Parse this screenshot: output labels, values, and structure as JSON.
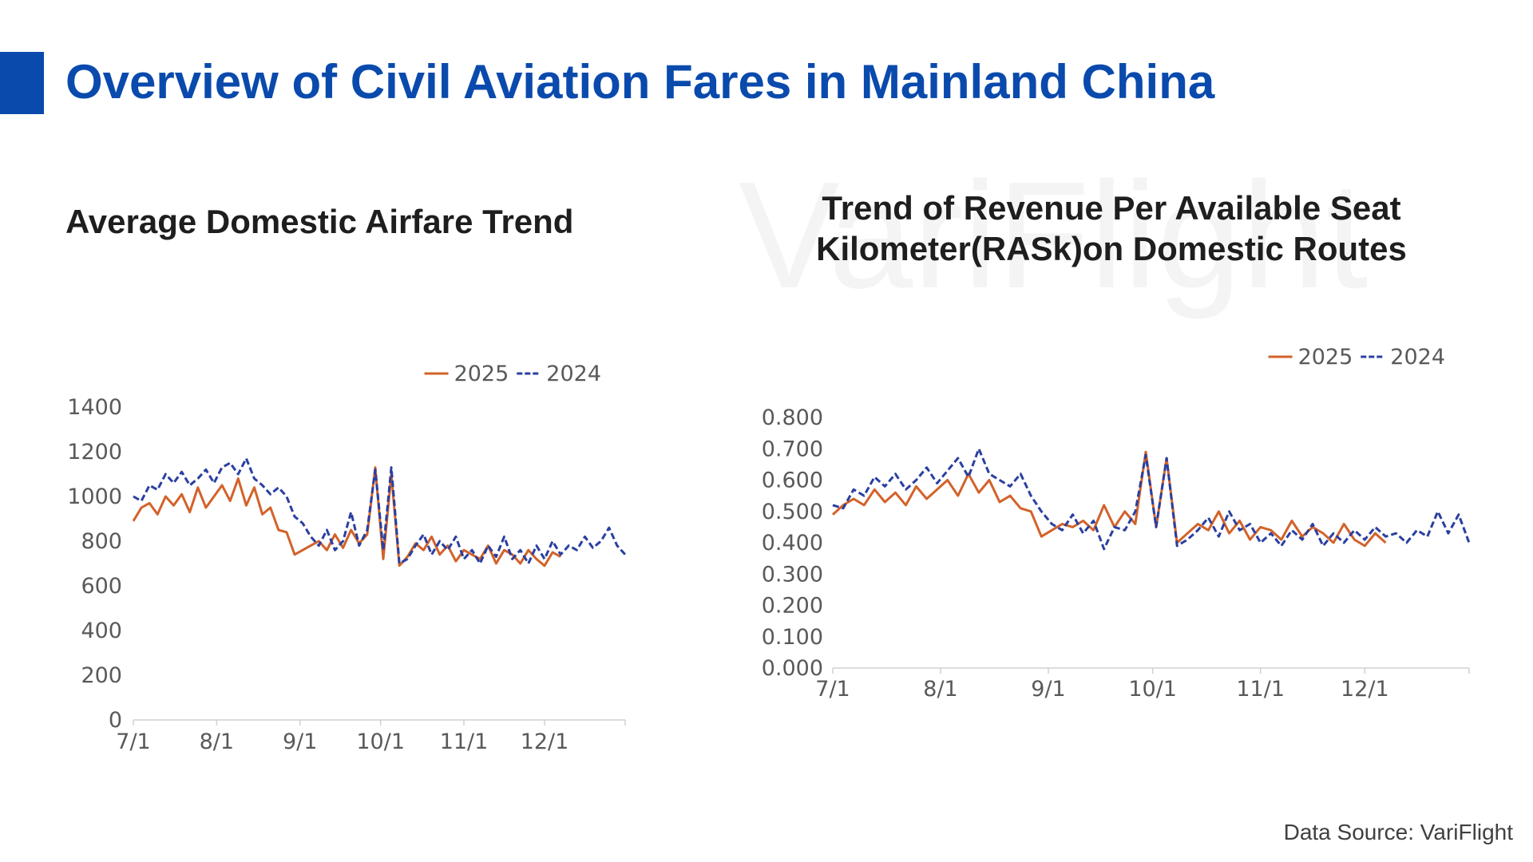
{
  "title": "Overview of Civil Aviation Fares in Mainland China",
  "watermark": "VariFlight",
  "source": "Data Source: VariFlight",
  "chart_data": [
    {
      "type": "line",
      "title": "Average Domestic Airfare Trend",
      "legend": "top-right",
      "x": [
        0,
        3,
        6,
        9,
        12,
        15,
        18,
        21,
        24,
        27,
        30,
        33,
        36,
        39,
        42,
        45,
        48,
        51,
        54,
        57,
        60,
        63,
        66,
        69,
        72,
        75,
        78,
        81,
        84,
        87,
        90,
        93,
        96,
        99,
        102,
        105,
        108,
        111,
        114,
        117,
        120,
        123,
        126,
        129,
        132,
        135,
        138,
        141,
        144,
        147,
        150,
        153,
        156,
        159,
        162,
        165,
        168,
        171,
        174,
        177,
        180,
        183
      ],
      "xlim": [
        0,
        183
      ],
      "xticks": [
        {
          "value": 0,
          "label": "7/1"
        },
        {
          "value": 31,
          "label": "8/1"
        },
        {
          "value": 62,
          "label": "9/1"
        },
        {
          "value": 92,
          "label": "10/1"
        },
        {
          "value": 123,
          "label": "11/1"
        },
        {
          "value": 153,
          "label": "12/1"
        },
        {
          "value": 183,
          "label": ""
        }
      ],
      "ylim": [
        0,
        1400
      ],
      "yticks": [
        0,
        200,
        400,
        600,
        800,
        1000,
        1200,
        1400
      ],
      "series": [
        {
          "name": "2025",
          "color": "#d2622a",
          "line_style": "solid",
          "values": [
            890,
            950,
            970,
            920,
            1000,
            960,
            1010,
            930,
            1040,
            950,
            1000,
            1050,
            980,
            1080,
            960,
            1040,
            920,
            950,
            850,
            840,
            740,
            760,
            780,
            800,
            760,
            830,
            770,
            850,
            790,
            830,
            1130,
            720,
            1100,
            690,
            730,
            790,
            760,
            820,
            740,
            780,
            710,
            760,
            740,
            720,
            780,
            700,
            760,
            740,
            700,
            760,
            720,
            690,
            750,
            730,
            null,
            null,
            null,
            null,
            null,
            null,
            null,
            null
          ]
        },
        {
          "name": "2024",
          "color": "#2a3fa0",
          "line_style": "dashed",
          "values": [
            1000,
            980,
            1050,
            1030,
            1100,
            1060,
            1110,
            1050,
            1080,
            1120,
            1060,
            1130,
            1150,
            1100,
            1170,
            1080,
            1050,
            1010,
            1040,
            1000,
            910,
            880,
            820,
            780,
            850,
            760,
            800,
            930,
            780,
            850,
            1120,
            760,
            1130,
            700,
            720,
            780,
            830,
            740,
            800,
            760,
            820,
            720,
            760,
            700,
            780,
            730,
            820,
            720,
            760,
            700,
            780,
            720,
            800,
            740,
            780,
            760,
            820,
            770,
            800,
            860,
            780,
            740
          ]
        }
      ]
    },
    {
      "type": "line",
      "title": "Trend of Revenue Per Available Seat Kilometer(RASk)on Domestic Routes",
      "legend": "top-right",
      "x": [
        0,
        3,
        6,
        9,
        12,
        15,
        18,
        21,
        24,
        27,
        30,
        33,
        36,
        39,
        42,
        45,
        48,
        51,
        54,
        57,
        60,
        63,
        66,
        69,
        72,
        75,
        78,
        81,
        84,
        87,
        90,
        93,
        96,
        99,
        102,
        105,
        108,
        111,
        114,
        117,
        120,
        123,
        126,
        129,
        132,
        135,
        138,
        141,
        144,
        147,
        150,
        153,
        156,
        159,
        162,
        165,
        168,
        171,
        174,
        177,
        180,
        183
      ],
      "xlim": [
        0,
        183
      ],
      "xticks": [
        {
          "value": 0,
          "label": "7/1"
        },
        {
          "value": 31,
          "label": "8/1"
        },
        {
          "value": 62,
          "label": "9/1"
        },
        {
          "value": 92,
          "label": "10/1"
        },
        {
          "value": 123,
          "label": "11/1"
        },
        {
          "value": 153,
          "label": "12/1"
        },
        {
          "value": 183,
          "label": ""
        }
      ],
      "ylim": [
        0,
        0.8
      ],
      "yticks": [
        {
          "value": 0,
          "label": "0.000"
        },
        {
          "value": 0.1,
          "label": "0.100"
        },
        {
          "value": 0.2,
          "label": "0.200"
        },
        {
          "value": 0.3,
          "label": "0.300"
        },
        {
          "value": 0.4,
          "label": "0.400"
        },
        {
          "value": 0.5,
          "label": "0.500"
        },
        {
          "value": 0.6,
          "label": "0.600"
        },
        {
          "value": 0.7,
          "label": "0.700"
        },
        {
          "value": 0.8,
          "label": "0.800"
        }
      ],
      "series": [
        {
          "name": "2025",
          "color": "#d2622a",
          "line_style": "solid",
          "values": [
            0.49,
            0.52,
            0.54,
            0.52,
            0.57,
            0.53,
            0.56,
            0.52,
            0.58,
            0.54,
            0.57,
            0.6,
            0.55,
            0.62,
            0.56,
            0.6,
            0.53,
            0.55,
            0.51,
            0.5,
            0.42,
            0.44,
            0.46,
            0.45,
            0.47,
            0.44,
            0.52,
            0.45,
            0.5,
            0.46,
            0.69,
            0.45,
            0.67,
            0.4,
            0.43,
            0.46,
            0.44,
            0.5,
            0.43,
            0.47,
            0.41,
            0.45,
            0.44,
            0.41,
            0.47,
            0.42,
            0.45,
            0.43,
            0.4,
            0.46,
            0.41,
            0.39,
            0.43,
            0.4,
            null,
            null,
            null,
            null,
            null,
            null,
            null,
            null
          ]
        },
        {
          "name": "2024",
          "color": "#2a3fa0",
          "line_style": "dashed",
          "values": [
            0.52,
            0.51,
            0.57,
            0.55,
            0.61,
            0.58,
            0.62,
            0.57,
            0.6,
            0.64,
            0.59,
            0.63,
            0.67,
            0.61,
            0.7,
            0.62,
            0.6,
            0.58,
            0.62,
            0.55,
            0.5,
            0.46,
            0.44,
            0.49,
            0.43,
            0.47,
            0.38,
            0.45,
            0.44,
            0.5,
            0.68,
            0.45,
            0.67,
            0.39,
            0.41,
            0.44,
            0.48,
            0.42,
            0.5,
            0.44,
            0.46,
            0.4,
            0.43,
            0.39,
            0.44,
            0.41,
            0.46,
            0.39,
            0.43,
            0.4,
            0.44,
            0.41,
            0.45,
            0.42,
            0.43,
            0.4,
            0.44,
            0.42,
            0.5,
            0.43,
            0.49,
            0.4
          ]
        }
      ]
    }
  ]
}
